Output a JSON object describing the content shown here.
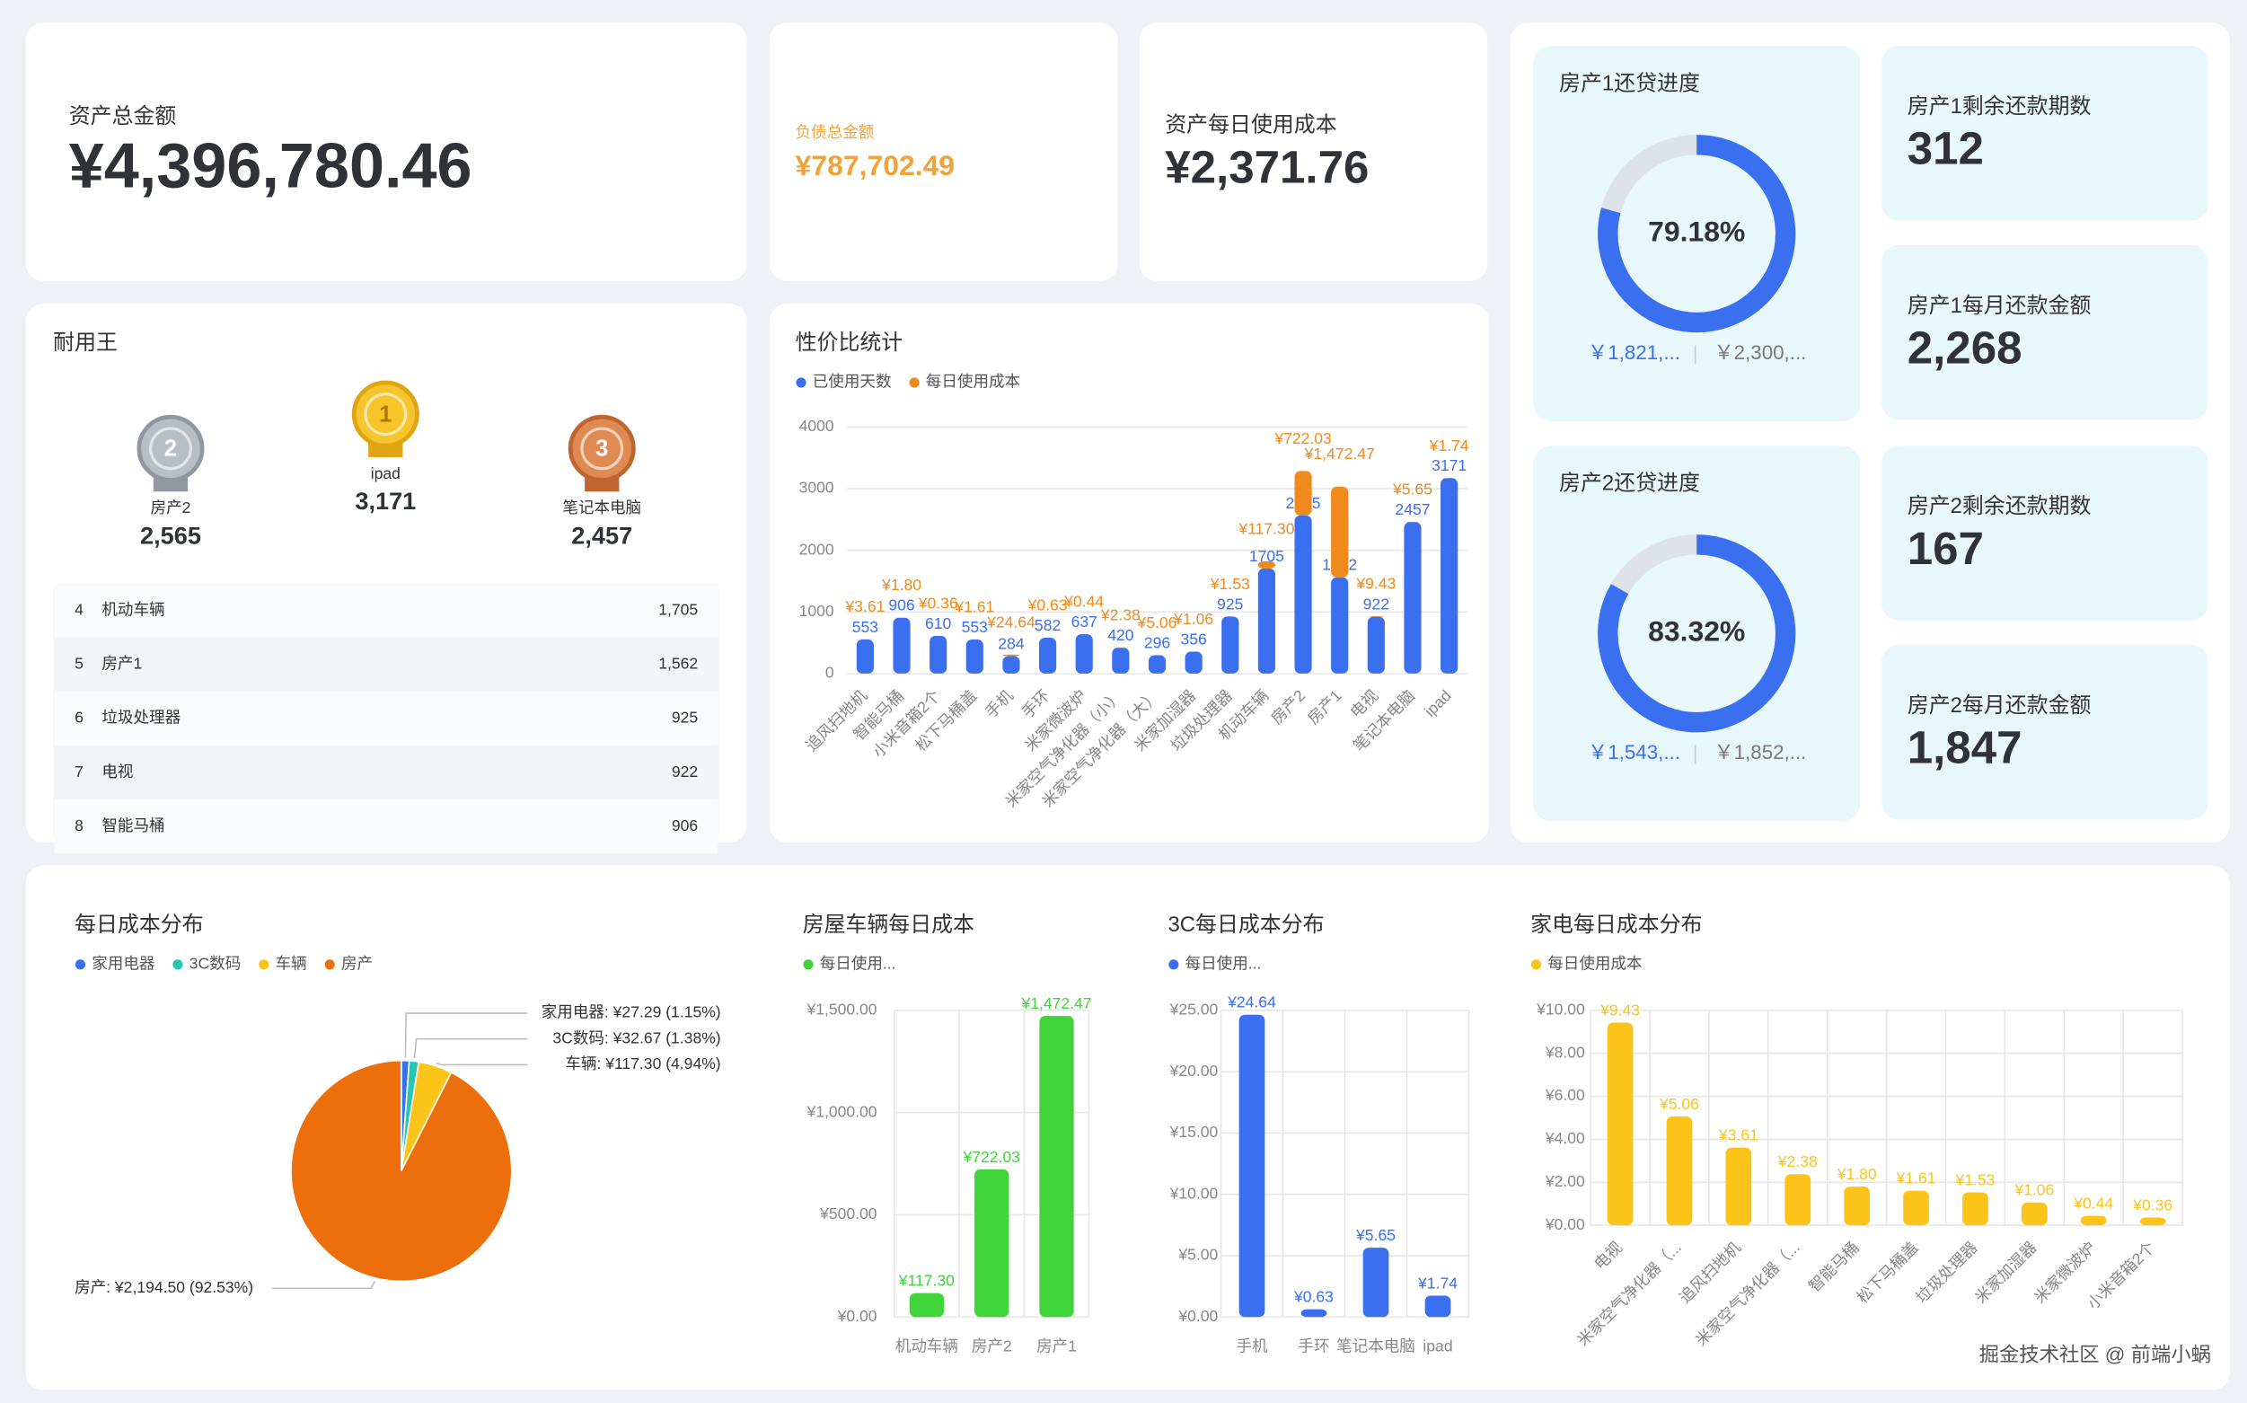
{
  "summary": {
    "assets": {
      "label": "资产总金额",
      "value": "¥4,396,780.46"
    },
    "liabilities": {
      "label": "负债总金额",
      "value": "¥787,702.49"
    },
    "daily_cost": {
      "label": "资产每日使用成本",
      "value": "¥2,371.76"
    }
  },
  "loans": [
    {
      "title": "房产1还贷进度",
      "progress": 79.18,
      "progress_label": "79.18%",
      "paid": "￥1,821,...",
      "total": "￥2,300,...",
      "remaining_label": "房产1剩余还款期数",
      "remaining": "312",
      "monthly_label": "房产1每月还款金额",
      "monthly": "2,268"
    },
    {
      "title": "房产2还贷进度",
      "progress": 83.32,
      "progress_label": "83.32%",
      "paid": "￥1,543,...",
      "total": "￥1,852,...",
      "remaining_label": "房产2剩余还款期数",
      "remaining": "167",
      "monthly_label": "房产2每月还款金额",
      "monthly": "1,847"
    }
  ],
  "durability": {
    "title": "耐用王",
    "podium": [
      {
        "rank": "2",
        "name": "房产2",
        "value": "2,565"
      },
      {
        "rank": "1",
        "name": "ipad",
        "value": "3,171"
      },
      {
        "rank": "3",
        "name": "笔记本电脑",
        "value": "2,457"
      }
    ],
    "rows": [
      [
        "4",
        "机动车辆",
        "1,705"
      ],
      [
        "5",
        "房产1",
        "1,562"
      ],
      [
        "6",
        "垃圾处理器",
        "925"
      ],
      [
        "7",
        "电视",
        "922"
      ],
      [
        "8",
        "智能马桶",
        "906"
      ]
    ]
  },
  "chart_data": [
    {
      "type": "bar",
      "title": "性价比统计",
      "stacked": true,
      "grid": true,
      "categories": [
        "追风扫地机",
        "智能马桶",
        "小米音箱2个",
        "松下马桶盖",
        "手机",
        "手环",
        "米家微波炉",
        "米家空气净化器（小）",
        "米家空气净化器（大）",
        "米家加湿器",
        "垃圾处理器",
        "机动车辆",
        "房产2",
        "房产1",
        "电视",
        "笔记本电脑",
        "ipad"
      ],
      "series": [
        {
          "name": "已使用天数",
          "color": "#3a6ff0",
          "values": [
            553,
            906,
            610,
            553,
            284,
            582,
            637,
            420,
            296,
            356,
            925,
            1705,
            2565,
            1562,
            922,
            2457,
            3171
          ]
        },
        {
          "name": "每日使用成本",
          "color": "#f08a1c",
          "values": [
            3.61,
            1.8,
            0.36,
            1.61,
            24.64,
            0.63,
            0.44,
            2.38,
            5.06,
            1.06,
            1.53,
            117.3,
            722.03,
            1472.47,
            9.43,
            5.65,
            1.74
          ],
          "value_labels": [
            "¥3.61",
            "¥1.80",
            "¥0.36",
            "¥1.61",
            "¥24.64",
            "¥0.63",
            "¥0.44",
            "¥2.38",
            "¥5.06",
            "¥1.06",
            "¥1.53",
            "¥117.30",
            "¥722.03",
            "¥1,472.47",
            "¥9.43",
            "¥5.65",
            "¥1.74"
          ]
        }
      ],
      "ylim": [
        0,
        4000
      ],
      "yticks": [
        0,
        1000,
        2000,
        3000,
        4000
      ]
    },
    {
      "type": "pie",
      "title": "每日成本分布",
      "categories": [
        "家用电器",
        "3C数码",
        "车辆",
        "房产"
      ],
      "values": [
        27.29,
        32.67,
        117.3,
        2194.5
      ],
      "colors": [
        "#3a6ff0",
        "#26c6b0",
        "#fcc419",
        "#ec6f0c"
      ],
      "value_labels": [
        "家用电器: ¥27.29 (1.15%)",
        "3C数码: ¥32.67 (1.38%)",
        "车辆: ¥117.30 (4.94%)",
        "房产: ¥2,194.50 (92.53%)"
      ]
    },
    {
      "type": "bar",
      "title": "房屋车辆每日成本",
      "grid": true,
      "categories": [
        "机动车辆",
        "房产2",
        "房产1"
      ],
      "series": [
        {
          "name": "每日使用...",
          "color": "#3ed43a",
          "values": [
            117.3,
            722.03,
            1472.47
          ],
          "value_labels": [
            "¥117.30",
            "¥722.03",
            "¥1,472.47"
          ]
        }
      ],
      "ylim": [
        0,
        1500
      ],
      "yticks": [
        {
          "value": 0,
          "label": "¥0.00"
        },
        {
          "value": 500,
          "label": "¥500.00"
        },
        {
          "value": 1000,
          "label": "¥1,000.00"
        },
        {
          "value": 1500,
          "label": "¥1,500.00"
        }
      ]
    },
    {
      "type": "bar",
      "title": "3C每日成本分布",
      "grid": true,
      "categories": [
        "手机",
        "手环",
        "笔记本电脑",
        "ipad"
      ],
      "series": [
        {
          "name": "每日使用...",
          "color": "#3a6ff0",
          "values": [
            24.64,
            0.63,
            5.65,
            1.74
          ],
          "value_labels": [
            "¥24.64",
            "¥0.63",
            "¥5.65",
            "¥1.74"
          ]
        }
      ],
      "ylim": [
        0,
        25
      ],
      "yticks": [
        {
          "value": 0,
          "label": "¥0.00"
        },
        {
          "value": 5,
          "label": "¥5.00"
        },
        {
          "value": 10,
          "label": "¥10.00"
        },
        {
          "value": 15,
          "label": "¥15.00"
        },
        {
          "value": 20,
          "label": "¥20.00"
        },
        {
          "value": 25,
          "label": "¥25.00"
        }
      ]
    },
    {
      "type": "bar",
      "title": "家电每日成本分布",
      "grid": true,
      "categories": [
        "电视",
        "米家空气净化器（...",
        "追风扫地机",
        "米家空气净化器（...",
        "智能马桶",
        "松下马桶盖",
        "垃圾处理器",
        "米家加湿器",
        "米家微波炉",
        "小米音箱2个"
      ],
      "series": [
        {
          "name": "每日使用成本",
          "color": "#fcc419",
          "values": [
            9.43,
            5.06,
            3.61,
            2.38,
            1.8,
            1.61,
            1.53,
            1.06,
            0.44,
            0.36
          ],
          "value_labels": [
            "¥9.43",
            "¥5.06",
            "¥3.61",
            "¥2.38",
            "¥1.80",
            "¥1.61",
            "¥1.53",
            "¥1.06",
            "¥0.44",
            "¥0.36"
          ]
        }
      ],
      "ylim": [
        0,
        10
      ],
      "yticks": [
        {
          "value": 0,
          "label": "¥0.00"
        },
        {
          "value": 2,
          "label": "¥2.00"
        },
        {
          "value": 4,
          "label": "¥4.00"
        },
        {
          "value": 6,
          "label": "¥6.00"
        },
        {
          "value": 8,
          "label": "¥8.00"
        },
        {
          "value": 10,
          "label": "¥10.00"
        }
      ]
    }
  ],
  "footer": "掘金技术社区 @ 前端小蜗"
}
